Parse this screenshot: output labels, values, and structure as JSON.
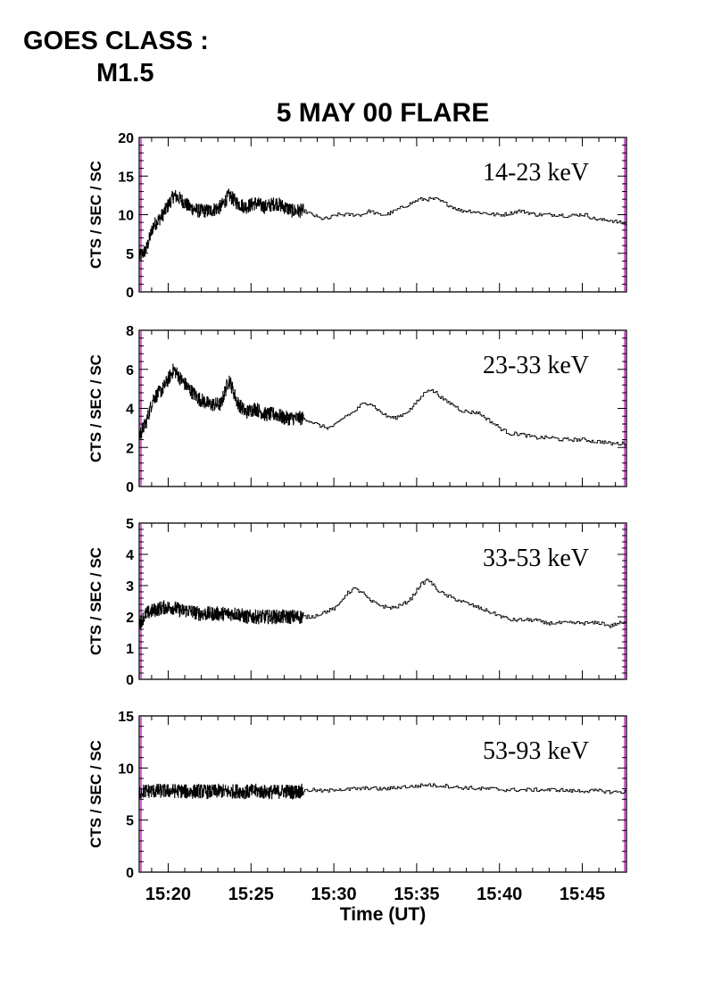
{
  "goes": {
    "line1": "GOES CLASS :",
    "line2": "M1.5"
  },
  "title": "5 MAY 00 FLARE",
  "xlabel": "Time (UT)",
  "colors": {
    "trace": "#000000",
    "edge_marker": "#cc33cc"
  },
  "chart_data": [
    {
      "type": "line",
      "band_label": "14-23 keV",
      "ylabel": "CTS / SEC / SC",
      "ylim": [
        0,
        20
      ],
      "yticks": [
        0,
        5,
        10,
        15,
        20
      ],
      "xlim": [
        "15:18:15",
        "15:47:40"
      ],
      "xticks": [
        "15:20",
        "15:25",
        "15:30",
        "15:35",
        "15:40",
        "15:45"
      ],
      "noisy_until": "15:28:10",
      "series": [
        {
          "x": [
            "15:18:15",
            "15:18:40",
            "15:19:05",
            "15:19:40",
            "15:20:20",
            "15:20:45",
            "15:21:15",
            "15:21:50",
            "15:22:30",
            "15:23:10",
            "15:23:40",
            "15:24:10",
            "15:24:40",
            "15:25:15",
            "15:25:50",
            "15:26:30",
            "15:27:00",
            "15:27:30",
            "15:28:10",
            "15:28:40",
            "15:29:10",
            "15:29:40",
            "15:30:10",
            "15:30:40",
            "15:31:10",
            "15:31:40",
            "15:32:10",
            "15:32:40",
            "15:33:10",
            "15:33:40",
            "15:34:10",
            "15:34:40",
            "15:35:10",
            "15:35:40",
            "15:36:10",
            "15:36:40",
            "15:37:10",
            "15:37:40",
            "15:38:10",
            "15:38:40",
            "15:39:10",
            "15:39:40",
            "15:40:10",
            "15:40:40",
            "15:41:10",
            "15:41:40",
            "15:42:10",
            "15:42:40",
            "15:43:10",
            "15:43:40",
            "15:44:10",
            "15:44:40",
            "15:45:10",
            "15:45:40",
            "15:46:10",
            "15:46:40",
            "15:47:10",
            "15:47:40"
          ],
          "values": [
            4.5,
            5.5,
            8.5,
            10,
            12.5,
            12,
            11,
            10.5,
            10.5,
            11,
            12.5,
            11.5,
            11,
            11.5,
            11,
            11.5,
            11,
            10.5,
            10.5,
            10,
            9.5,
            9.5,
            10,
            10,
            10,
            10,
            10.5,
            10,
            10,
            10.5,
            11,
            11.5,
            12,
            12,
            12,
            11.5,
            11,
            10.5,
            10.5,
            10.3,
            10.2,
            10,
            10,
            10.2,
            10.5,
            10.3,
            10,
            10,
            10,
            10,
            9.8,
            10,
            10,
            9.5,
            9.3,
            9.3,
            9,
            8.8
          ]
        }
      ]
    },
    {
      "type": "line",
      "band_label": "23-33 keV",
      "ylabel": "CTS / SEC / SC",
      "ylim": [
        0,
        8
      ],
      "yticks": [
        0,
        2,
        4,
        6,
        8
      ],
      "xlim": [
        "15:18:15",
        "15:47:40"
      ],
      "xticks": [
        "15:20",
        "15:25",
        "15:30",
        "15:35",
        "15:40",
        "15:45"
      ],
      "noisy_until": "15:28:10",
      "series": [
        {
          "x": [
            "15:18:15",
            "15:18:40",
            "15:19:05",
            "15:19:40",
            "15:20:20",
            "15:20:45",
            "15:21:15",
            "15:21:50",
            "15:22:30",
            "15:23:10",
            "15:23:40",
            "15:24:10",
            "15:24:40",
            "15:25:15",
            "15:25:50",
            "15:26:30",
            "15:27:00",
            "15:27:30",
            "15:28:10",
            "15:28:40",
            "15:29:10",
            "15:29:40",
            "15:30:10",
            "15:30:40",
            "15:31:10",
            "15:31:40",
            "15:32:10",
            "15:32:40",
            "15:33:10",
            "15:33:40",
            "15:34:10",
            "15:34:40",
            "15:35:10",
            "15:35:40",
            "15:36:10",
            "15:36:40",
            "15:37:10",
            "15:37:40",
            "15:38:10",
            "15:38:40",
            "15:39:10",
            "15:39:40",
            "15:40:10",
            "15:40:40",
            "15:41:10",
            "15:41:40",
            "15:42:10",
            "15:42:40",
            "15:43:10",
            "15:43:40",
            "15:44:10",
            "15:44:40",
            "15:45:10",
            "15:45:40",
            "15:46:10",
            "15:46:40",
            "15:47:10",
            "15:47:40"
          ],
          "values": [
            2.6,
            3.3,
            4.5,
            5,
            6,
            5.5,
            5,
            4.5,
            4.2,
            4.2,
            5.5,
            4.3,
            3.8,
            4,
            3.7,
            3.7,
            3.5,
            3.5,
            3.5,
            3.3,
            3.1,
            3,
            3.2,
            3.6,
            3.8,
            4.2,
            4.3,
            3.9,
            3.6,
            3.5,
            3.7,
            4,
            4.5,
            5,
            4.8,
            4.4,
            4.2,
            3.9,
            3.8,
            3.8,
            3.5,
            3.2,
            2.9,
            2.7,
            2.7,
            2.6,
            2.5,
            2.5,
            2.5,
            2.4,
            2.4,
            2.4,
            2.4,
            2.3,
            2.3,
            2.2,
            2.2,
            2.2
          ]
        }
      ]
    },
    {
      "type": "line",
      "band_label": "33-53 keV",
      "ylabel": "CTS / SEC / SC",
      "ylim": [
        0,
        5
      ],
      "yticks": [
        0,
        1,
        2,
        3,
        4,
        5
      ],
      "xlim": [
        "15:18:15",
        "15:47:40"
      ],
      "xticks": [
        "15:20",
        "15:25",
        "15:30",
        "15:35",
        "15:40",
        "15:45"
      ],
      "noisy_until": "15:28:10",
      "series": [
        {
          "x": [
            "15:18:15",
            "15:18:40",
            "15:19:05",
            "15:19:40",
            "15:20:20",
            "15:20:45",
            "15:21:15",
            "15:21:50",
            "15:22:30",
            "15:23:10",
            "15:23:40",
            "15:24:10",
            "15:24:40",
            "15:25:15",
            "15:25:50",
            "15:26:30",
            "15:27:00",
            "15:27:30",
            "15:28:10",
            "15:28:40",
            "15:29:10",
            "15:29:40",
            "15:30:10",
            "15:30:40",
            "15:31:10",
            "15:31:40",
            "15:32:10",
            "15:32:40",
            "15:33:10",
            "15:33:40",
            "15:34:10",
            "15:34:40",
            "15:35:10",
            "15:35:40",
            "15:36:10",
            "15:36:40",
            "15:37:10",
            "15:37:40",
            "15:38:10",
            "15:38:40",
            "15:39:10",
            "15:39:40",
            "15:40:10",
            "15:40:40",
            "15:41:10",
            "15:41:40",
            "15:42:10",
            "15:42:40",
            "15:43:10",
            "15:43:40",
            "15:44:10",
            "15:44:40",
            "15:45:10",
            "15:45:40",
            "15:46:10",
            "15:46:40",
            "15:47:10",
            "15:47:40"
          ],
          "values": [
            1.8,
            2.1,
            2.2,
            2.3,
            2.3,
            2.2,
            2.2,
            2.1,
            2.1,
            2.1,
            2.1,
            2.1,
            2,
            2,
            2,
            2,
            2,
            2,
            2,
            2,
            2.1,
            2.2,
            2.3,
            2.7,
            2.9,
            2.8,
            2.5,
            2.4,
            2.3,
            2.3,
            2.4,
            2.6,
            3,
            3.2,
            2.9,
            2.7,
            2.6,
            2.5,
            2.4,
            2.3,
            2.2,
            2.1,
            2,
            1.9,
            1.9,
            1.9,
            1.9,
            1.8,
            1.8,
            1.8,
            1.8,
            1.8,
            1.8,
            1.8,
            1.8,
            1.7,
            1.8,
            1.8
          ]
        }
      ]
    },
    {
      "type": "line",
      "band_label": "53-93 keV",
      "ylabel": "CTS / SEC / SC",
      "ylim": [
        0,
        15
      ],
      "yticks": [
        0,
        5,
        10,
        15
      ],
      "xlim": [
        "15:18:15",
        "15:47:40"
      ],
      "xticks": [
        "15:20",
        "15:25",
        "15:30",
        "15:35",
        "15:40",
        "15:45"
      ],
      "noisy_until": "15:28:10",
      "series": [
        {
          "x": [
            "15:18:15",
            "15:18:40",
            "15:19:05",
            "15:19:40",
            "15:20:20",
            "15:20:45",
            "15:21:15",
            "15:21:50",
            "15:22:30",
            "15:23:10",
            "15:23:40",
            "15:24:10",
            "15:24:40",
            "15:25:15",
            "15:25:50",
            "15:26:30",
            "15:27:00",
            "15:27:30",
            "15:28:10",
            "15:28:40",
            "15:29:10",
            "15:29:40",
            "15:30:10",
            "15:30:40",
            "15:31:10",
            "15:31:40",
            "15:32:10",
            "15:32:40",
            "15:33:10",
            "15:33:40",
            "15:34:10",
            "15:34:40",
            "15:35:10",
            "15:35:40",
            "15:36:10",
            "15:36:40",
            "15:37:10",
            "15:37:40",
            "15:38:10",
            "15:38:40",
            "15:39:10",
            "15:39:40",
            "15:40:10",
            "15:40:40",
            "15:41:10",
            "15:41:40",
            "15:42:10",
            "15:42:40",
            "15:43:10",
            "15:43:40",
            "15:44:10",
            "15:44:40",
            "15:45:10",
            "15:45:40",
            "15:46:10",
            "15:46:40",
            "15:47:10",
            "15:47:40"
          ],
          "values": [
            7.7,
            7.8,
            7.8,
            7.8,
            7.8,
            7.8,
            7.7,
            7.8,
            7.7,
            7.8,
            7.7,
            7.8,
            7.7,
            7.8,
            7.7,
            7.7,
            7.8,
            7.7,
            7.8,
            7.9,
            7.8,
            7.8,
            8,
            7.9,
            8,
            8,
            8.1,
            8,
            8,
            8.1,
            8.2,
            8.2,
            8.3,
            8.4,
            8.3,
            8.3,
            8.2,
            8.1,
            8.1,
            8,
            8,
            8,
            7.9,
            7.9,
            7.9,
            7.9,
            7.9,
            7.9,
            7.9,
            7.9,
            7.8,
            7.8,
            7.8,
            7.8,
            7.8,
            7.7,
            7.7,
            7.7
          ]
        }
      ]
    }
  ]
}
